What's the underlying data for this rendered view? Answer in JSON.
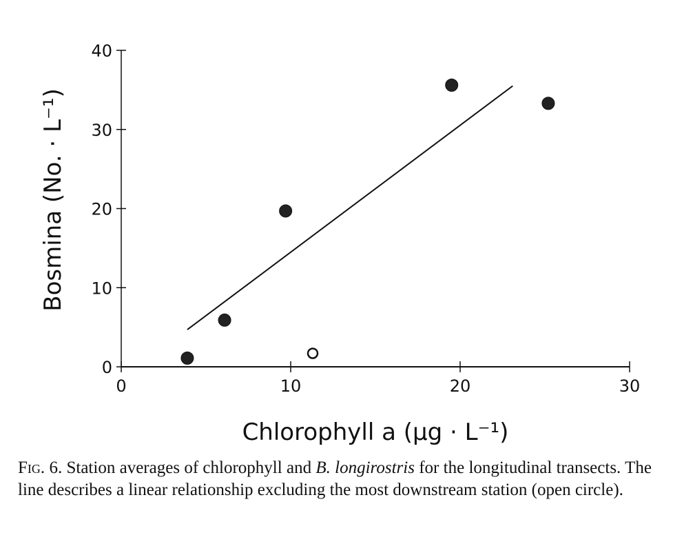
{
  "chart_data": {
    "type": "scatter",
    "title": "",
    "xlabel": "Chlorophyll a (µg · L⁻¹)",
    "ylabel": "Bosmina (No. · L⁻¹)",
    "xlim": [
      0,
      30
    ],
    "ylim": [
      0,
      40
    ],
    "xticks": [
      "0",
      "10",
      "20",
      "30"
    ],
    "yticks": [
      "0",
      "10",
      "20",
      "30",
      "40"
    ],
    "grid": false,
    "series": [
      {
        "name": "Stations (filled)",
        "marker": "filled-circle",
        "x": [
          3.9,
          6.1,
          9.7,
          19.5,
          25.2
        ],
        "y": [
          1.1,
          5.9,
          19.7,
          35.6,
          33.3
        ]
      },
      {
        "name": "Most downstream station (open)",
        "marker": "open-circle",
        "x": [
          11.3
        ],
        "y": [
          1.7
        ]
      }
    ],
    "fit_line": {
      "x": [
        3.9,
        23.1
      ],
      "y": [
        4.7,
        35.5
      ]
    }
  },
  "caption": {
    "label": "Fig.",
    "number": " 6. ",
    "text1": "Station averages of chlorophyll and ",
    "species": "B. longirostris",
    "text2": " for the longitudinal transects. The line describes a linear relationship excluding the most downstream station (open circle)."
  }
}
